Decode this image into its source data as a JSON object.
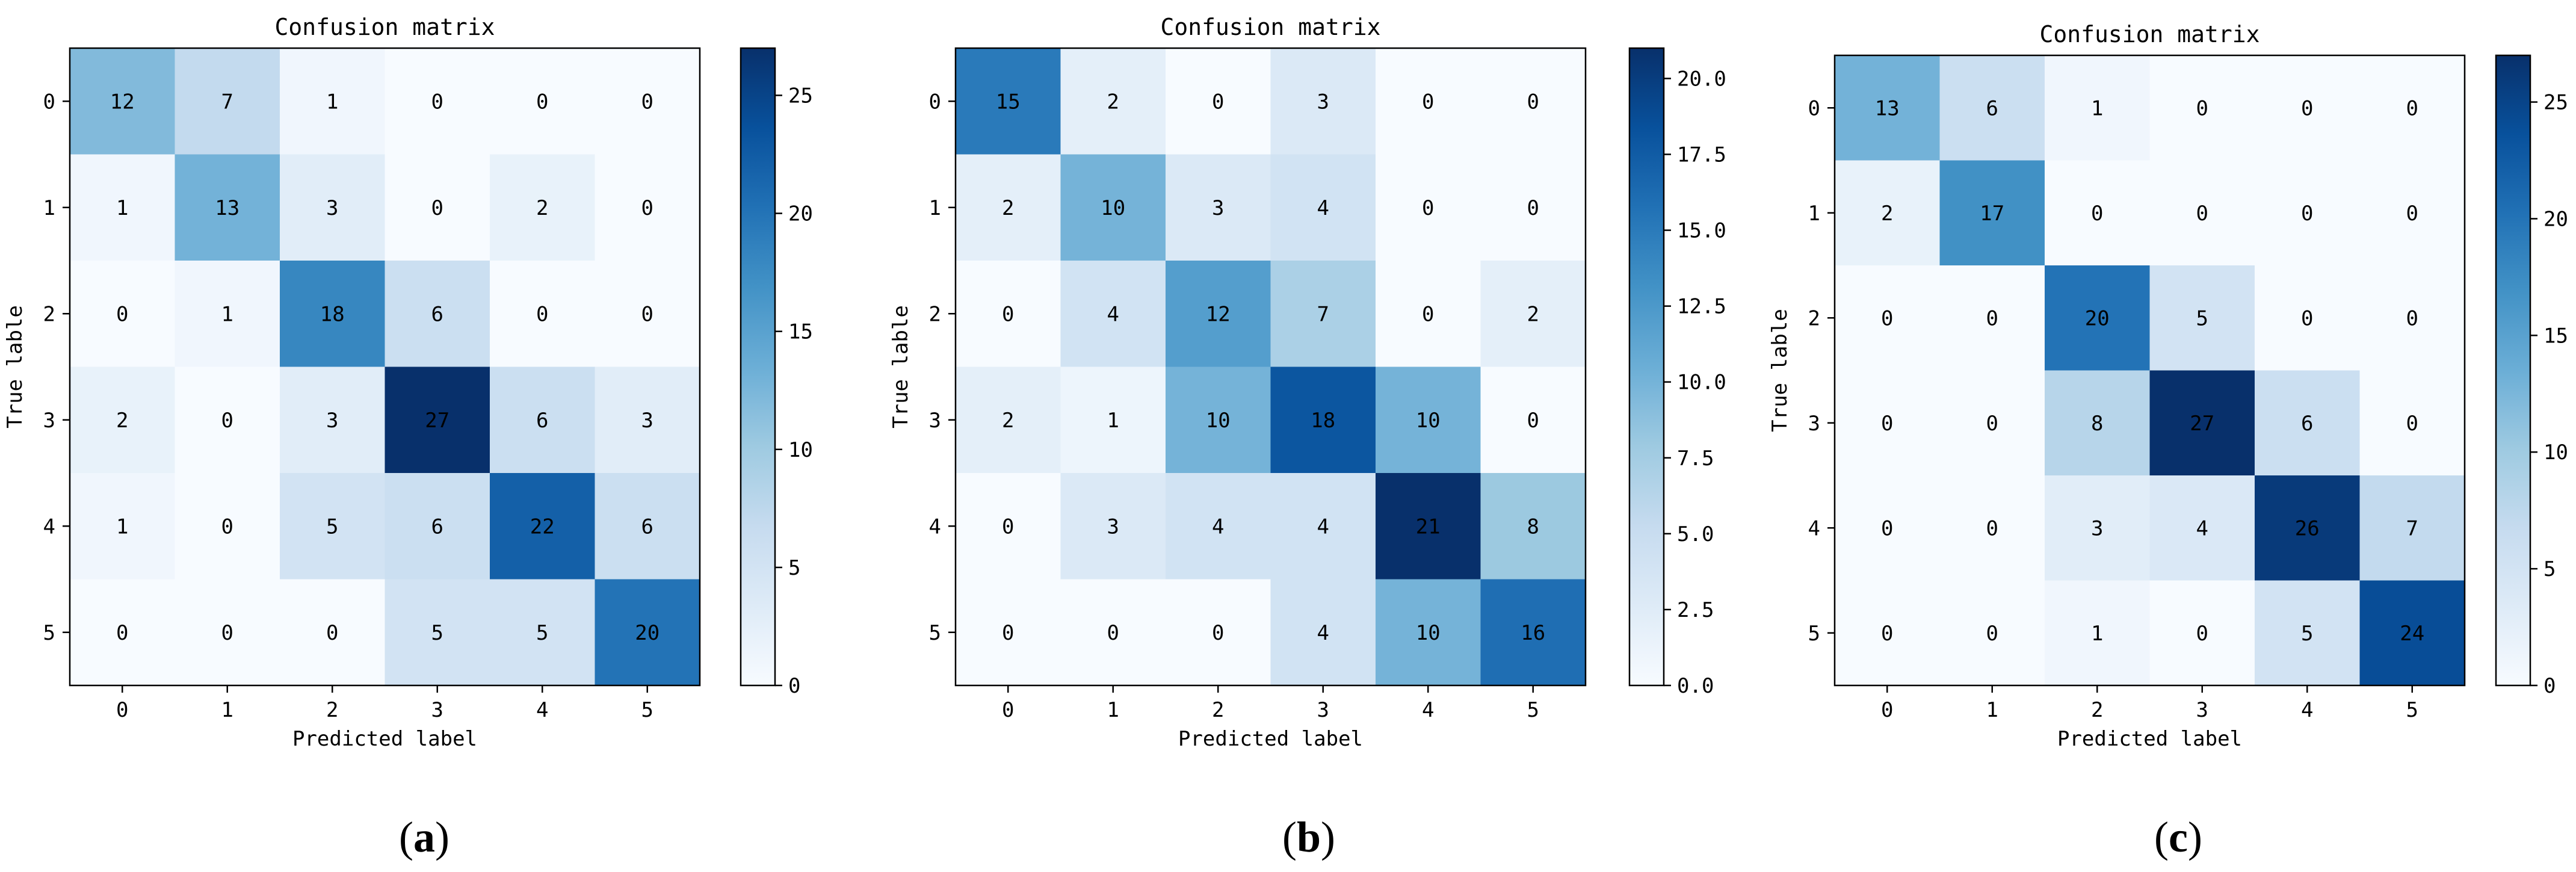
{
  "chart_data": [
    {
      "type": "heatmap",
      "title": "Confusion matrix",
      "xlabel": "Predicted label",
      "ylabel": "True lable",
      "x_ticks": [
        "0",
        "1",
        "2",
        "3",
        "4",
        "5"
      ],
      "y_ticks": [
        "0",
        "1",
        "2",
        "3",
        "4",
        "5"
      ],
      "matrix": [
        [
          12,
          7,
          1,
          0,
          0,
          0
        ],
        [
          1,
          13,
          3,
          0,
          2,
          0
        ],
        [
          0,
          1,
          18,
          6,
          0,
          0
        ],
        [
          2,
          0,
          3,
          27,
          6,
          3
        ],
        [
          1,
          0,
          5,
          6,
          22,
          6
        ],
        [
          0,
          0,
          0,
          5,
          5,
          20
        ]
      ],
      "colormap": "Blues",
      "color_range": [
        0,
        27
      ],
      "colorbar_ticks": [
        "0",
        "5",
        "10",
        "15",
        "20",
        "25"
      ],
      "caption": "(a)"
    },
    {
      "type": "heatmap",
      "title": "Confusion matrix",
      "xlabel": "Predicted label",
      "ylabel": "True lable",
      "x_ticks": [
        "0",
        "1",
        "2",
        "3",
        "4",
        "5"
      ],
      "y_ticks": [
        "0",
        "1",
        "2",
        "3",
        "4",
        "5"
      ],
      "matrix": [
        [
          15,
          2,
          0,
          3,
          0,
          0
        ],
        [
          2,
          10,
          3,
          4,
          0,
          0
        ],
        [
          0,
          4,
          12,
          7,
          0,
          2
        ],
        [
          2,
          1,
          10,
          18,
          10,
          0
        ],
        [
          0,
          3,
          4,
          4,
          21,
          8
        ],
        [
          0,
          0,
          0,
          4,
          10,
          16
        ]
      ],
      "colormap": "Blues",
      "color_range": [
        0,
        21
      ],
      "colorbar_ticks": [
        "0.0",
        "2.5",
        "5.0",
        "7.5",
        "10.0",
        "12.5",
        "15.0",
        "17.5",
        "20.0"
      ],
      "caption": "(b)"
    },
    {
      "type": "heatmap",
      "title": "Confusion matrix",
      "xlabel": "Predicted label",
      "ylabel": "True lable",
      "x_ticks": [
        "0",
        "1",
        "2",
        "3",
        "4",
        "5"
      ],
      "y_ticks": [
        "0",
        "1",
        "2",
        "3",
        "4",
        "5"
      ],
      "matrix": [
        [
          13,
          6,
          1,
          0,
          0,
          0
        ],
        [
          2,
          17,
          0,
          0,
          0,
          0
        ],
        [
          0,
          0,
          20,
          5,
          0,
          0
        ],
        [
          0,
          0,
          8,
          27,
          6,
          0
        ],
        [
          0,
          0,
          3,
          4,
          26,
          7
        ],
        [
          0,
          0,
          1,
          0,
          5,
          24
        ]
      ],
      "colormap": "Blues",
      "color_range": [
        0,
        27
      ],
      "colorbar_ticks": [
        "0",
        "5",
        "10",
        "15",
        "20",
        "25"
      ],
      "caption": "(c)"
    }
  ]
}
